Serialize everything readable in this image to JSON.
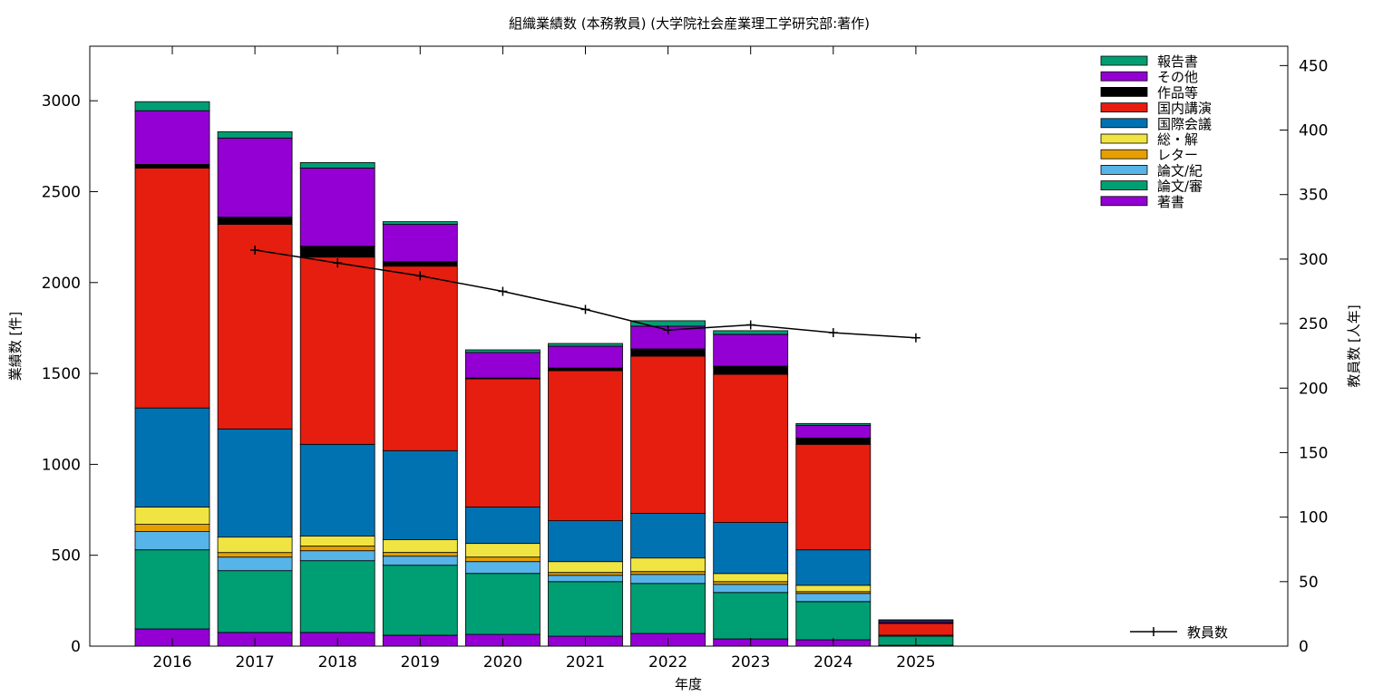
{
  "chart_data": {
    "type": "bar",
    "stacked": true,
    "title": "組織業績数 (本務教員) (大学院社会産業理工学研究部:著作)",
    "xlabel": "年度",
    "ylabel": "業績数 [件]",
    "y2label": "教員数 [人年]",
    "ylim": [
      0,
      3300
    ],
    "y2lim": [
      0,
      465
    ],
    "yticks": [
      0,
      500,
      1000,
      1500,
      2000,
      2500,
      3000
    ],
    "y2ticks": [
      0,
      50,
      100,
      150,
      200,
      250,
      300,
      350,
      400,
      450
    ],
    "categories": [
      "2016",
      "2017",
      "2018",
      "2019",
      "2020",
      "2021",
      "2022",
      "2023",
      "2024",
      "2025"
    ],
    "legend_position": "top-right",
    "series": [
      {
        "name": "著書",
        "color": "#9400d3",
        "values": [
          95,
          75,
          75,
          60,
          65,
          55,
          70,
          40,
          35,
          5
        ]
      },
      {
        "name": "論文/審",
        "color": "#009e73",
        "values": [
          435,
          340,
          395,
          385,
          335,
          300,
          275,
          255,
          210,
          50
        ]
      },
      {
        "name": "論文/紀",
        "color": "#56b4e9",
        "values": [
          100,
          75,
          55,
          50,
          65,
          35,
          50,
          45,
          45,
          5
        ]
      },
      {
        "name": "レター",
        "color": "#e69f00",
        "values": [
          40,
          25,
          25,
          20,
          25,
          15,
          15,
          15,
          10,
          0
        ]
      },
      {
        "name": "総・解",
        "color": "#f0e442",
        "values": [
          95,
          85,
          55,
          70,
          75,
          60,
          75,
          45,
          35,
          0
        ]
      },
      {
        "name": "国際会議",
        "color": "#0072b2",
        "values": [
          545,
          595,
          505,
          490,
          200,
          225,
          245,
          280,
          195,
          0
        ]
      },
      {
        "name": "国内講演",
        "color": "#e51e10",
        "values": [
          1320,
          1125,
          1030,
          1015,
          705,
          825,
          865,
          815,
          580,
          65
        ]
      },
      {
        "name": "作品等",
        "color": "#000000",
        "values": [
          20,
          40,
          60,
          25,
          5,
          15,
          40,
          45,
          35,
          5
        ]
      },
      {
        "name": "その他",
        "color": "#9400d3",
        "values": [
          295,
          435,
          430,
          205,
          140,
          120,
          125,
          175,
          70,
          10
        ]
      },
      {
        "name": "報告書",
        "color": "#009e73",
        "values": [
          50,
          35,
          30,
          15,
          15,
          15,
          30,
          20,
          10,
          5
        ]
      }
    ],
    "line_series": {
      "name": "教員数",
      "color": "#000000",
      "axis": "right",
      "categories": [
        "2017",
        "2018",
        "2019",
        "2020",
        "2021",
        "2022",
        "2023",
        "2024",
        "2025"
      ],
      "values": [
        307,
        297,
        287,
        275,
        261,
        245,
        249,
        243,
        239
      ]
    }
  }
}
